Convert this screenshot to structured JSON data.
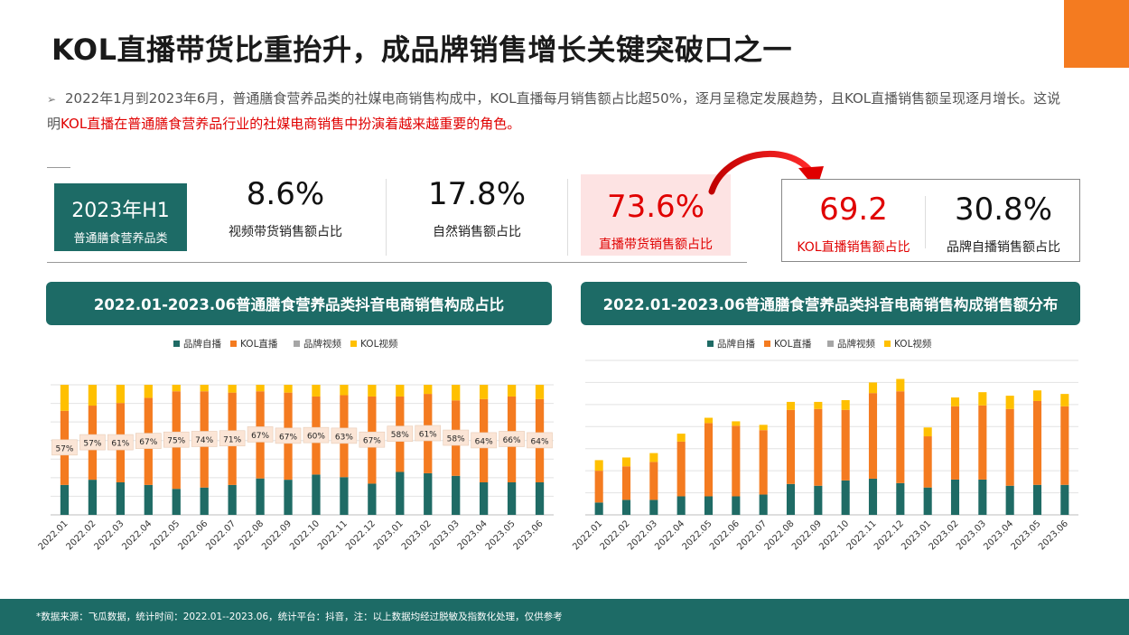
{
  "title": "KOL直播带货比重抬升，成品牌销售增长关键突破口之一",
  "intro": {
    "bullet": "➢",
    "text": "2022年1月到2023年6月，普通膳食营养品类的社媒电商销售构成中，KOL直播每月销售额占比超50%，逐月呈稳定发展趋势，且KOL直播销售额呈现逐月增长。这说明",
    "highlight": "KOL直播在普通膳食营养品行业的社媒电商销售中扮演着越来越重要的角色。"
  },
  "kpi": {
    "label_big": "2023年H1",
    "label_small": "普通膳食营养品类",
    "items": [
      {
        "value": "8.6%",
        "label": "视频带货销售额占比"
      },
      {
        "value": "17.8%",
        "label": "自然销售额占比"
      },
      {
        "value": "73.6%",
        "label": "直播带货销售额占比"
      }
    ],
    "breakdown": [
      {
        "value": "69.2",
        "label": "KOL直播销售额占比"
      },
      {
        "value": "30.8%",
        "label": "品牌自播销售额占比"
      }
    ]
  },
  "colors": {
    "brand": "#1f6b65",
    "kol": "#f47b20",
    "brand_video": "#a6a6a6",
    "kol_video": "#ffc000",
    "highlight": "#e00000"
  },
  "footer": "*数据来源：飞瓜数据，统计时间：2022.01--2023.06，统计平台：抖音，注：以上数据均经过脱敏及指数化处理，仅供参考",
  "chart_data": [
    {
      "type": "bar",
      "stacked": true,
      "normalized": true,
      "title": "2022.01-2023.06普通膳食营养品类抖音电商销售构成占比",
      "categories": [
        "2022.01",
        "2022.02",
        "2022.03",
        "2022.04",
        "2022.05",
        "2022.06",
        "2022.07",
        "2022.08",
        "2022.09",
        "2022.10",
        "2022.11",
        "2022.12",
        "2023.01",
        "2023.02",
        "2023.03",
        "2023.04",
        "2023.05",
        "2023.06"
      ],
      "series": [
        {
          "name": "品牌自播",
          "values": [
            23,
            27,
            25,
            23,
            20,
            21,
            23,
            28,
            27,
            31,
            29,
            24,
            33,
            32,
            30,
            25,
            25,
            25
          ]
        },
        {
          "name": "KOL直播",
          "values": [
            57,
            57,
            61,
            67,
            75,
            74,
            71,
            67,
            67,
            60,
            63,
            67,
            58,
            61,
            58,
            64,
            66,
            64
          ]
        },
        {
          "name": "品牌视频",
          "values": [
            0,
            0,
            0,
            0,
            0,
            0,
            0,
            0,
            0,
            0,
            0,
            0,
            0,
            0,
            0,
            0,
            0,
            0
          ]
        },
        {
          "name": "KOL视频",
          "values": [
            20,
            16,
            14,
            10,
            5,
            5,
            6,
            5,
            6,
            9,
            8,
            9,
            9,
            7,
            12,
            11,
            9,
            11
          ]
        }
      ],
      "data_labels": [
        "57%",
        "57%",
        "61%",
        "67%",
        "75%",
        "74%",
        "71%",
        "67%",
        "67%",
        "60%",
        "63%",
        "67%",
        "58%",
        "61%",
        "58%",
        "64%",
        "66%",
        "64%"
      ],
      "legend_position": "top",
      "grid": true
    },
    {
      "type": "bar",
      "stacked": true,
      "title": "2022.01-2023.06普通膳食营养品类抖音电商销售构成销售额分布",
      "categories": [
        "2022.01",
        "2022.02",
        "2022.03",
        "2022.04",
        "2022.05",
        "2022.06",
        "2022.07",
        "2022.08",
        "2022.09",
        "2022.10",
        "2022.11",
        "2022.12",
        "2023.01",
        "2023.02",
        "2023.03",
        "2023.04",
        "2023.05",
        "2023.06"
      ],
      "series": [
        {
          "name": "品牌自播",
          "values": [
            14,
            17,
            17,
            21,
            21,
            21,
            23,
            35,
            33,
            39,
            41,
            36,
            31,
            40,
            40,
            33,
            34,
            34
          ]
        },
        {
          "name": "KOL直播",
          "values": [
            36,
            38,
            43,
            62,
            83,
            80,
            73,
            84,
            87,
            80,
            97,
            104,
            58,
            83,
            84,
            87,
            95,
            89
          ]
        },
        {
          "name": "品牌视频",
          "values": [
            0,
            0,
            0,
            0,
            0,
            0,
            0,
            0,
            0,
            0,
            0,
            0,
            0,
            0,
            0,
            0,
            0,
            0
          ]
        },
        {
          "name": "KOL视频",
          "values": [
            12,
            10,
            10,
            9,
            6,
            5,
            6,
            9,
            8,
            11,
            12,
            14,
            10,
            10,
            15,
            15,
            12,
            14
          ]
        }
      ],
      "ylim": [
        0,
        175
      ],
      "legend_position": "top",
      "grid": true
    }
  ]
}
